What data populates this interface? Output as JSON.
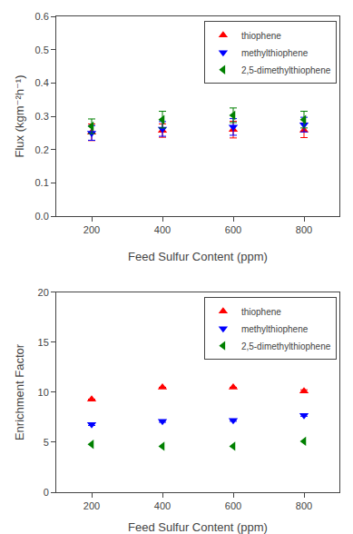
{
  "chart_data": [
    {
      "type": "scatter",
      "xlabel": "Feed Sulfur Content (ppm)",
      "ylabel": "Flux (kgm⁻²h⁻¹)",
      "x": [
        200,
        400,
        600,
        800
      ],
      "xlim": [
        100,
        900
      ],
      "xticks": [
        200,
        400,
        600,
        800
      ],
      "ylim": [
        0.0,
        0.6
      ],
      "yticks": [
        {
          "value": 0.0,
          "label": "0.0"
        },
        0.1,
        0.2,
        0.3,
        0.4,
        0.5,
        0.6
      ],
      "grid": false,
      "legend": "upper right",
      "series": [
        {
          "name": "thiophene",
          "color": "#FF0000",
          "marker": "triangle-up",
          "values": [
            0.252,
            0.257,
            0.26,
            0.258
          ],
          "errors": [
            0.025,
            0.02,
            0.025,
            0.022
          ]
        },
        {
          "name": "methylthiophene",
          "color": "#0000FF",
          "marker": "triangle-down",
          "values": [
            0.25,
            0.262,
            0.268,
            0.275
          ],
          "errors": [
            0.022,
            0.022,
            0.025,
            0.022
          ]
        },
        {
          "name": "2,5-dimethylthiophene",
          "color": "#008000",
          "marker": "triangle-left",
          "values": [
            0.27,
            0.29,
            0.303,
            0.29
          ],
          "errors": [
            0.022,
            0.025,
            0.022,
            0.025
          ]
        }
      ]
    },
    {
      "type": "scatter",
      "xlabel": "Feed Sulfur Content (ppm)",
      "ylabel": "Enrichment Factor",
      "x": [
        200,
        400,
        600,
        800
      ],
      "xlim": [
        100,
        900
      ],
      "xticks": [
        200,
        400,
        600,
        800
      ],
      "ylim": [
        0,
        20
      ],
      "yticks": [
        0,
        5,
        10,
        15,
        20
      ],
      "grid": false,
      "legend": "upper right",
      "series": [
        {
          "name": "thiophene",
          "color": "#FF0000",
          "marker": "triangle-up",
          "values": [
            9.3,
            10.5,
            10.5,
            10.1
          ],
          "errors": [
            0.0,
            0.0,
            0.0,
            0.15
          ]
        },
        {
          "name": "methylthiophene",
          "color": "#0000FF",
          "marker": "triangle-down",
          "values": [
            6.8,
            7.1,
            7.2,
            7.7
          ],
          "errors": [
            0.12,
            0.1,
            0.1,
            0.1
          ]
        },
        {
          "name": "2,5-dimethylthiophene",
          "color": "#008000",
          "marker": "triangle-left",
          "values": [
            4.8,
            4.6,
            4.6,
            5.1
          ]
        }
      ]
    }
  ]
}
